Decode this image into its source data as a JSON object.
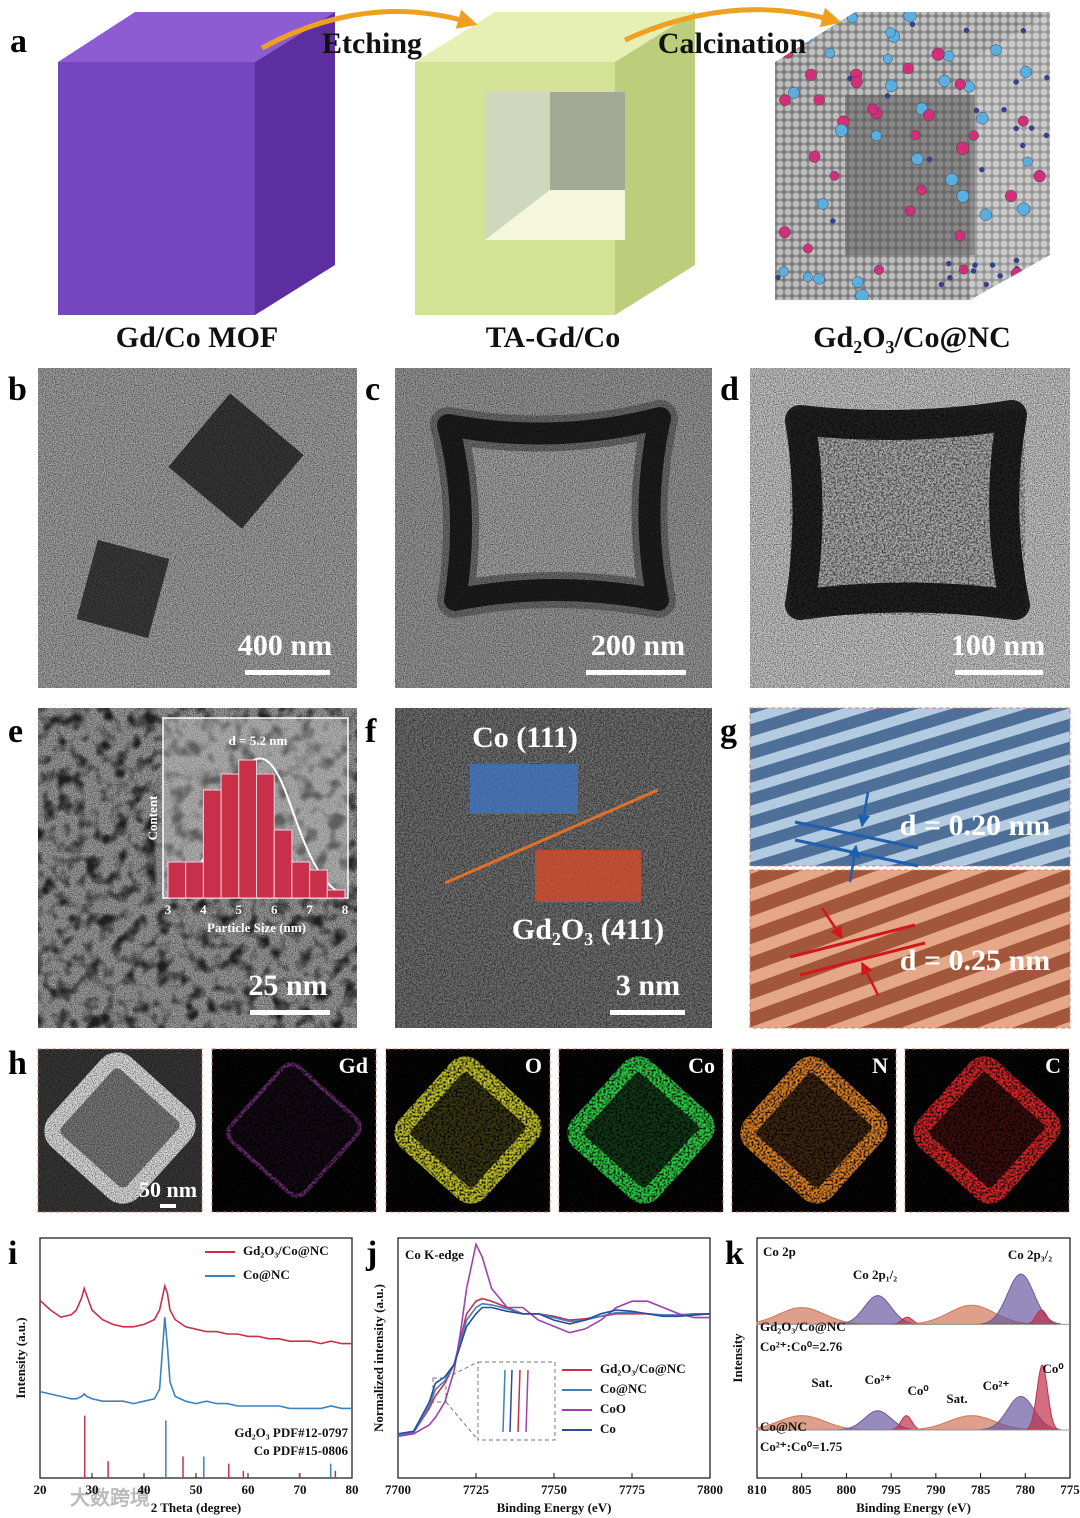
{
  "watermark": "大数跨境",
  "a": {
    "label": "a",
    "step1": "Etching",
    "step2": "Calcination",
    "stage1": "Gd/Co MOF",
    "stage2": "TA-Gd/Co",
    "stage3": "Gd₂O₃/Co@NC"
  },
  "b": {
    "label": "b",
    "scale_bar": "400 nm"
  },
  "c": {
    "label": "c",
    "scale_bar": "200 nm"
  },
  "d": {
    "label": "d",
    "scale_bar": "100 nm"
  },
  "e": {
    "label": "e",
    "scale_bar": "25 nm"
  },
  "f": {
    "label": "f",
    "region1": "Co (111)",
    "region2": "Gd₂O₃ (411)",
    "scale_bar": "3 nm"
  },
  "g": {
    "label": "g",
    "spacing1": "d = 0.20 nm",
    "spacing2": "d = 0.25 nm"
  },
  "h": {
    "label": "h",
    "scale_bar": "50 nm",
    "elements": [
      "Gd",
      "O",
      "Co",
      "N",
      "C"
    ]
  },
  "chart_data": [
    {
      "type": "histogram",
      "title": "d = 5.2 nm",
      "xlabel": "Particle Size (nm)",
      "ylabel": "Content",
      "bins": [
        3,
        3.5,
        4,
        4.5,
        5,
        5.5,
        6,
        6.5,
        7,
        7.5,
        8
      ],
      "values": [
        9,
        9,
        27,
        31,
        34.5,
        31,
        17,
        9,
        7,
        2
      ],
      "color": "#c8304a",
      "xlim": [
        3,
        8
      ],
      "xticks": [
        3,
        4,
        5,
        6,
        7,
        8
      ],
      "ylim": [
        0,
        40
      ]
    },
    {
      "type": "line",
      "panel_label": "i",
      "xlabel": "2 Theta (degree)",
      "ylabel": "Intensity (a.u.)",
      "x": [
        20,
        22,
        24,
        26,
        27,
        28,
        28.5,
        29,
        30,
        32,
        34,
        36,
        38,
        40,
        42,
        43,
        44,
        44.5,
        45,
        46,
        48,
        50,
        52,
        54,
        56,
        58,
        60,
        62,
        64,
        66,
        68,
        70,
        72,
        74,
        76,
        78,
        80
      ],
      "series": [
        {
          "name": "Gd₂O₃/Co@NC",
          "color": "#c8304a",
          "values": [
            74,
            70,
            67,
            68,
            70,
            75,
            79,
            76,
            70,
            66,
            64,
            63,
            63,
            64,
            66,
            70,
            80,
            77,
            70,
            66,
            63,
            62,
            61,
            61,
            60,
            60,
            59,
            59,
            58,
            58,
            57,
            57,
            57,
            56,
            57,
            56,
            56
          ]
        },
        {
          "name": "Co@NC",
          "color": "#3a82c0",
          "values": [
            36,
            35,
            34,
            33,
            33,
            34,
            35,
            34,
            33,
            32,
            32,
            32,
            31,
            32,
            33,
            37,
            67,
            55,
            40,
            34,
            32,
            31,
            32,
            31,
            31,
            30,
            30,
            30,
            30,
            30,
            29,
            29,
            29,
            29,
            30,
            29,
            29
          ]
        }
      ],
      "references": [
        {
          "name": "Gd₂O₃ PDF#12-0797",
          "color": "#c8304a",
          "positions": [
            28.6,
            33.1,
            47.5,
            56.3,
            59.1,
            69.9,
            76.8
          ],
          "heights": [
            26,
            7,
            9,
            6,
            3,
            2,
            3
          ]
        },
        {
          "name": "Co PDF#15-0806",
          "color": "#3a82c0",
          "positions": [
            44.2,
            51.5,
            75.9
          ],
          "heights": [
            24,
            9,
            6
          ]
        }
      ],
      "xlim": [
        20,
        80
      ],
      "xticks": [
        20,
        30,
        40,
        50,
        60,
        70,
        80
      ],
      "ylim": [
        0,
        100
      ]
    },
    {
      "type": "line",
      "panel_label": "j",
      "annotation": "Co K-edge",
      "xlabel": "Binding Energy (eV)",
      "ylabel": "Normalized intensity (a.u.)",
      "x": [
        7700,
        7705,
        7710,
        7712,
        7715,
        7718,
        7720,
        7722,
        7725,
        7727,
        7730,
        7735,
        7740,
        7745,
        7750,
        7755,
        7760,
        7765,
        7770,
        7775,
        7780,
        7785,
        7790,
        7795,
        7800
      ],
      "series": [
        {
          "name": "Gd₂O₃/Co@NC",
          "color": "#c8304a",
          "values": [
            0.04,
            0.06,
            0.25,
            0.35,
            0.45,
            0.6,
            0.8,
            1.0,
            1.1,
            1.12,
            1.1,
            1.05,
            1.0,
            1.0,
            0.98,
            0.95,
            0.96,
            0.98,
            1.0,
            1.0,
            1.0,
            0.99,
            0.99,
            1.0,
            1.0
          ]
        },
        {
          "name": "Co@NC",
          "color": "#3a82c0",
          "values": [
            0.04,
            0.06,
            0.27,
            0.4,
            0.47,
            0.6,
            0.78,
            0.95,
            1.05,
            1.08,
            1.07,
            1.04,
            1.0,
            1.0,
            0.97,
            0.94,
            0.95,
            0.98,
            1.01,
            1.01,
            1.0,
            0.99,
            0.99,
            1.0,
            1.0
          ]
        },
        {
          "name": "CoO",
          "color": "#a040b0",
          "values": [
            0.03,
            0.05,
            0.12,
            0.18,
            0.3,
            0.55,
            0.85,
            1.2,
            1.55,
            1.45,
            1.2,
            1.05,
            1.05,
            0.95,
            0.9,
            0.85,
            0.88,
            0.95,
            1.05,
            1.1,
            1.1,
            1.05,
            1.0,
            0.97,
            0.97
          ]
        },
        {
          "name": "Co",
          "color": "#2a4a9a",
          "values": [
            0.05,
            0.07,
            0.3,
            0.45,
            0.5,
            0.6,
            0.75,
            0.9,
            1.0,
            1.05,
            1.05,
            1.02,
            1.0,
            1.0,
            0.95,
            0.92,
            0.95,
            1.0,
            1.03,
            1.02,
            1.0,
            0.98,
            0.98,
            0.99,
            1.0
          ]
        }
      ],
      "xlim": [
        7700,
        7800
      ],
      "xticks": [
        7700,
        7725,
        7750,
        7775,
        7800
      ],
      "ylim": [
        -0.3,
        1.6
      ]
    },
    {
      "type": "xps",
      "panel_label": "k",
      "title": "Co 2p",
      "xlabel": "Binding Energy (eV)",
      "ylabel": "Intensity",
      "annotations": [
        "Co 2p₁/₂",
        "Co 2p₃/₂",
        "Sat.",
        "Co²⁺",
        "Co⁰",
        "Sat.",
        "Co²⁺",
        "Co⁰"
      ],
      "samples": [
        {
          "name": "Gd₂O₃/Co@NC",
          "ratio": "Co²⁺:Co⁰=2.76",
          "color": "#c8304a",
          "baseline": 64,
          "peaks": [
            {
              "center": 805,
              "height": 7,
              "width": 6,
              "color": "#d0765a"
            },
            {
              "center": 796.5,
              "height": 12,
              "width": 3.5,
              "color": "#6a5aa0"
            },
            {
              "center": 793.2,
              "height": 3,
              "width": 1.4,
              "color": "#c0304a"
            },
            {
              "center": 786,
              "height": 8,
              "width": 6,
              "color": "#d0765a"
            },
            {
              "center": 780.5,
              "height": 21,
              "width": 3.5,
              "color": "#6a5aa0"
            },
            {
              "center": 778.2,
              "height": 6,
              "width": 1.4,
              "color": "#c0304a"
            }
          ]
        },
        {
          "name": "Co@NC",
          "ratio": "Co²⁺:Co⁰=1.75",
          "color": "#3a82c0",
          "baseline": 20,
          "peaks": [
            {
              "center": 805,
              "height": 6,
              "width": 6,
              "color": "#d0765a"
            },
            {
              "center": 796.5,
              "height": 8,
              "width": 3.5,
              "color": "#6a5aa0"
            },
            {
              "center": 793.3,
              "height": 6,
              "width": 1.4,
              "color": "#c0304a"
            },
            {
              "center": 786,
              "height": 6,
              "width": 6,
              "color": "#d0765a"
            },
            {
              "center": 780.5,
              "height": 14,
              "width": 3.5,
              "color": "#6a5aa0"
            },
            {
              "center": 778.1,
              "height": 27,
              "width": 1.4,
              "color": "#c0304a"
            }
          ]
        }
      ],
      "xlim": [
        810,
        775
      ],
      "xticks": [
        810,
        805,
        800,
        795,
        790,
        785,
        780,
        775
      ],
      "ylim": [
        0,
        100
      ]
    }
  ]
}
